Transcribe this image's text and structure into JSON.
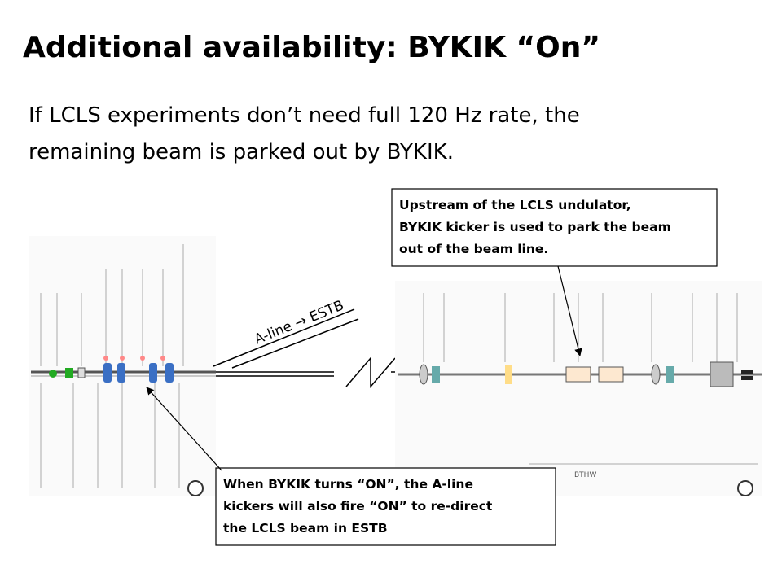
{
  "title": "Additional availability: BYKIK “On”",
  "body": {
    "lines": [
      "If LCLS experiments don’t need  full 120 Hz rate, the",
      "remaining beam is parked out by BYKIK."
    ]
  },
  "diagram": {
    "line_label": "A-line → ESTB",
    "label": "BTHW"
  },
  "callouts": [
    {
      "lines": [
        "Upstream of the LCLS undulator,",
        "BYKIK kicker is used to park the beam",
        "out of the beam line."
      ]
    },
    {
      "lines": [
        "When BYKIK turns “ON”, the A-line",
        "kickers will also fire “ON” to re-direct",
        "the LCLS beam in ESTB"
      ]
    }
  ]
}
